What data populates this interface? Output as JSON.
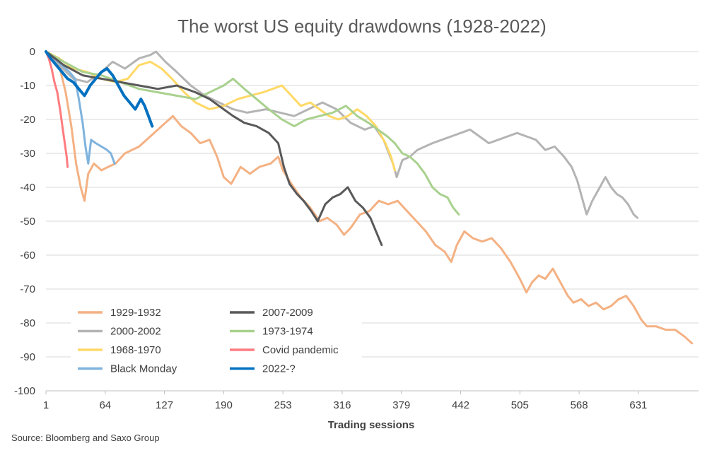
{
  "chart_data": {
    "type": "line",
    "title": "The worst US equity drawdowns (1928-2022)",
    "xlabel": "Trading sessions",
    "ylabel": "",
    "source": "Source: Bloomberg and Saxo Group",
    "xlim": [
      1,
      695
    ],
    "ylim": [
      -100,
      0
    ],
    "x_ticks": [
      1,
      64,
      127,
      190,
      253,
      316,
      379,
      442,
      505,
      568,
      631
    ],
    "y_ticks": [
      0,
      -10,
      -20,
      -30,
      -40,
      -50,
      -60,
      -70,
      -80,
      -90,
      -100
    ],
    "grid": "horizontal",
    "legend": "bottom-left",
    "series": [
      {
        "name": "1929-1932",
        "color": "#F4B183",
        "width": 3,
        "points": [
          [
            1,
            0
          ],
          [
            15,
            -4
          ],
          [
            22,
            -12
          ],
          [
            28,
            -22
          ],
          [
            33,
            -33
          ],
          [
            38,
            -40
          ],
          [
            42,
            -44
          ],
          [
            46,
            -36
          ],
          [
            52,
            -33
          ],
          [
            60,
            -35
          ],
          [
            67,
            -34
          ],
          [
            75,
            -33
          ],
          [
            85,
            -30
          ],
          [
            100,
            -28
          ],
          [
            112,
            -25
          ],
          [
            120,
            -23
          ],
          [
            128,
            -21
          ],
          [
            136,
            -19
          ],
          [
            145,
            -22
          ],
          [
            155,
            -24
          ],
          [
            165,
            -27
          ],
          [
            175,
            -26
          ],
          [
            183,
            -31
          ],
          [
            190,
            -37
          ],
          [
            198,
            -39
          ],
          [
            208,
            -34
          ],
          [
            218,
            -36
          ],
          [
            228,
            -34
          ],
          [
            240,
            -33
          ],
          [
            248,
            -31
          ],
          [
            253,
            -35
          ],
          [
            262,
            -39
          ],
          [
            272,
            -43
          ],
          [
            282,
            -46
          ],
          [
            292,
            -50
          ],
          [
            300,
            -49
          ],
          [
            310,
            -51
          ],
          [
            318,
            -54
          ],
          [
            325,
            -52
          ],
          [
            335,
            -48
          ],
          [
            345,
            -47
          ],
          [
            355,
            -44
          ],
          [
            365,
            -45
          ],
          [
            375,
            -44
          ],
          [
            385,
            -47
          ],
          [
            395,
            -50
          ],
          [
            405,
            -53
          ],
          [
            415,
            -57
          ],
          [
            425,
            -59
          ],
          [
            432,
            -62
          ],
          [
            438,
            -57
          ],
          [
            446,
            -53
          ],
          [
            455,
            -55
          ],
          [
            465,
            -56
          ],
          [
            475,
            -55
          ],
          [
            485,
            -58
          ],
          [
            495,
            -62
          ],
          [
            505,
            -67
          ],
          [
            512,
            -71
          ],
          [
            518,
            -68
          ],
          [
            525,
            -66
          ],
          [
            532,
            -67
          ],
          [
            540,
            -64
          ],
          [
            548,
            -68
          ],
          [
            556,
            -72
          ],
          [
            562,
            -74
          ],
          [
            570,
            -73
          ],
          [
            578,
            -75
          ],
          [
            586,
            -74
          ],
          [
            594,
            -76
          ],
          [
            602,
            -75
          ],
          [
            610,
            -73
          ],
          [
            618,
            -72
          ],
          [
            626,
            -75
          ],
          [
            634,
            -79
          ],
          [
            640,
            -81
          ],
          [
            650,
            -81
          ],
          [
            660,
            -82
          ],
          [
            670,
            -82
          ],
          [
            680,
            -84
          ],
          [
            688,
            -86
          ]
        ]
      },
      {
        "name": "2000-2002",
        "color": "#B4B4B4",
        "width": 3,
        "points": [
          [
            1,
            0
          ],
          [
            15,
            -4
          ],
          [
            30,
            -8
          ],
          [
            45,
            -9
          ],
          [
            60,
            -6
          ],
          [
            72,
            -3
          ],
          [
            85,
            -5
          ],
          [
            100,
            -2
          ],
          [
            112,
            -1
          ],
          [
            118,
            0
          ],
          [
            128,
            -3
          ],
          [
            140,
            -6
          ],
          [
            155,
            -10
          ],
          [
            170,
            -13
          ],
          [
            185,
            -15
          ],
          [
            200,
            -17
          ],
          [
            215,
            -18
          ],
          [
            235,
            -17
          ],
          [
            250,
            -18
          ],
          [
            265,
            -19
          ],
          [
            280,
            -17
          ],
          [
            295,
            -15
          ],
          [
            310,
            -17
          ],
          [
            325,
            -21
          ],
          [
            340,
            -23
          ],
          [
            350,
            -22
          ],
          [
            360,
            -26
          ],
          [
            370,
            -33
          ],
          [
            374,
            -37
          ],
          [
            380,
            -32
          ],
          [
            388,
            -31
          ],
          [
            396,
            -29
          ],
          [
            404,
            -28
          ],
          [
            412,
            -27
          ],
          [
            422,
            -26
          ],
          [
            432,
            -25
          ],
          [
            442,
            -24
          ],
          [
            452,
            -23
          ],
          [
            462,
            -25
          ],
          [
            472,
            -27
          ],
          [
            482,
            -26
          ],
          [
            492,
            -25
          ],
          [
            502,
            -24
          ],
          [
            512,
            -25
          ],
          [
            522,
            -26
          ],
          [
            532,
            -29
          ],
          [
            542,
            -28
          ],
          [
            552,
            -31
          ],
          [
            560,
            -34
          ],
          [
            566,
            -38
          ],
          [
            572,
            -44
          ],
          [
            576,
            -48
          ],
          [
            582,
            -44
          ],
          [
            590,
            -40
          ],
          [
            596,
            -37
          ],
          [
            602,
            -40
          ],
          [
            608,
            -42
          ],
          [
            614,
            -43
          ],
          [
            620,
            -45
          ],
          [
            626,
            -48
          ],
          [
            630,
            -49
          ]
        ]
      },
      {
        "name": "1968-1970",
        "color": "#FFD966",
        "width": 3,
        "points": [
          [
            1,
            0
          ],
          [
            15,
            -2
          ],
          [
            30,
            -5
          ],
          [
            45,
            -6
          ],
          [
            60,
            -8
          ],
          [
            75,
            -9
          ],
          [
            88,
            -8
          ],
          [
            100,
            -4
          ],
          [
            112,
            -3
          ],
          [
            124,
            -5
          ],
          [
            135,
            -8
          ],
          [
            148,
            -12
          ],
          [
            160,
            -15
          ],
          [
            175,
            -17
          ],
          [
            190,
            -16
          ],
          [
            205,
            -14
          ],
          [
            218,
            -13
          ],
          [
            232,
            -12
          ],
          [
            242,
            -11
          ],
          [
            252,
            -10
          ],
          [
            262,
            -13
          ],
          [
            272,
            -16
          ],
          [
            282,
            -15
          ],
          [
            292,
            -17
          ],
          [
            302,
            -19
          ],
          [
            312,
            -20
          ],
          [
            322,
            -19
          ],
          [
            332,
            -17
          ],
          [
            342,
            -19
          ],
          [
            352,
            -22
          ],
          [
            362,
            -27
          ],
          [
            368,
            -31
          ],
          [
            372,
            -35
          ]
        ]
      },
      {
        "name": "Black Monday",
        "color": "#7FB3DD",
        "width": 3,
        "points": [
          [
            1,
            0
          ],
          [
            10,
            -2
          ],
          [
            18,
            -4
          ],
          [
            26,
            -6
          ],
          [
            32,
            -8
          ],
          [
            36,
            -14
          ],
          [
            40,
            -21
          ],
          [
            43,
            -28
          ],
          [
            46,
            -33
          ],
          [
            49,
            -26
          ],
          [
            54,
            -27
          ],
          [
            60,
            -28
          ],
          [
            66,
            -29
          ],
          [
            70,
            -30
          ],
          [
            74,
            -33
          ]
        ]
      },
      {
        "name": "2007-2009",
        "color": "#595959",
        "width": 3,
        "points": [
          [
            1,
            0
          ],
          [
            20,
            -4
          ],
          [
            40,
            -7
          ],
          [
            60,
            -8
          ],
          [
            80,
            -9
          ],
          [
            100,
            -10
          ],
          [
            120,
            -11
          ],
          [
            140,
            -10
          ],
          [
            160,
            -12
          ],
          [
            175,
            -14
          ],
          [
            190,
            -17
          ],
          [
            200,
            -19
          ],
          [
            212,
            -21
          ],
          [
            225,
            -22
          ],
          [
            238,
            -24
          ],
          [
            248,
            -27
          ],
          [
            254,
            -34
          ],
          [
            260,
            -39
          ],
          [
            268,
            -42
          ],
          [
            275,
            -44
          ],
          [
            283,
            -47
          ],
          [
            290,
            -50
          ],
          [
            298,
            -45
          ],
          [
            306,
            -43
          ],
          [
            314,
            -42
          ],
          [
            322,
            -40
          ],
          [
            330,
            -44
          ],
          [
            338,
            -46
          ],
          [
            346,
            -49
          ],
          [
            352,
            -53
          ],
          [
            358,
            -57
          ]
        ]
      },
      {
        "name": "1973-1974",
        "color": "#A9D18E",
        "width": 3,
        "points": [
          [
            1,
            0
          ],
          [
            20,
            -3
          ],
          [
            40,
            -6
          ],
          [
            60,
            -7
          ],
          [
            80,
            -9
          ],
          [
            100,
            -11
          ],
          [
            120,
            -12
          ],
          [
            140,
            -13
          ],
          [
            160,
            -14
          ],
          [
            175,
            -12
          ],
          [
            190,
            -10
          ],
          [
            200,
            -8
          ],
          [
            212,
            -11
          ],
          [
            225,
            -14
          ],
          [
            238,
            -17
          ],
          [
            252,
            -20
          ],
          [
            265,
            -22
          ],
          [
            278,
            -20
          ],
          [
            292,
            -19
          ],
          [
            306,
            -18
          ],
          [
            320,
            -16
          ],
          [
            332,
            -19
          ],
          [
            344,
            -21
          ],
          [
            354,
            -23
          ],
          [
            364,
            -25
          ],
          [
            372,
            -27
          ],
          [
            380,
            -30
          ],
          [
            388,
            -31
          ],
          [
            396,
            -33
          ],
          [
            404,
            -36
          ],
          [
            412,
            -40
          ],
          [
            420,
            -42
          ],
          [
            428,
            -43
          ],
          [
            434,
            -46
          ],
          [
            440,
            -48
          ]
        ]
      },
      {
        "name": "Covid pandemic",
        "color": "#FF7C80",
        "width": 3,
        "points": [
          [
            1,
            0
          ],
          [
            4,
            -2
          ],
          [
            7,
            -5
          ],
          [
            10,
            -9
          ],
          [
            13,
            -12
          ],
          [
            16,
            -17
          ],
          [
            19,
            -23
          ],
          [
            21,
            -27
          ],
          [
            23,
            -31
          ],
          [
            24,
            -34
          ]
        ]
      },
      {
        "name": "2022-?",
        "color": "#0070C0",
        "width": 4,
        "points": [
          [
            1,
            0
          ],
          [
            6,
            -2
          ],
          [
            12,
            -4
          ],
          [
            18,
            -6
          ],
          [
            24,
            -8
          ],
          [
            30,
            -9
          ],
          [
            36,
            -11
          ],
          [
            42,
            -13
          ],
          [
            48,
            -10
          ],
          [
            54,
            -8
          ],
          [
            60,
            -6
          ],
          [
            66,
            -5
          ],
          [
            72,
            -7
          ],
          [
            78,
            -10
          ],
          [
            84,
            -13
          ],
          [
            90,
            -15
          ],
          [
            96,
            -17
          ],
          [
            102,
            -14
          ],
          [
            106,
            -16
          ],
          [
            110,
            -19
          ],
          [
            114,
            -22
          ]
        ]
      }
    ]
  }
}
